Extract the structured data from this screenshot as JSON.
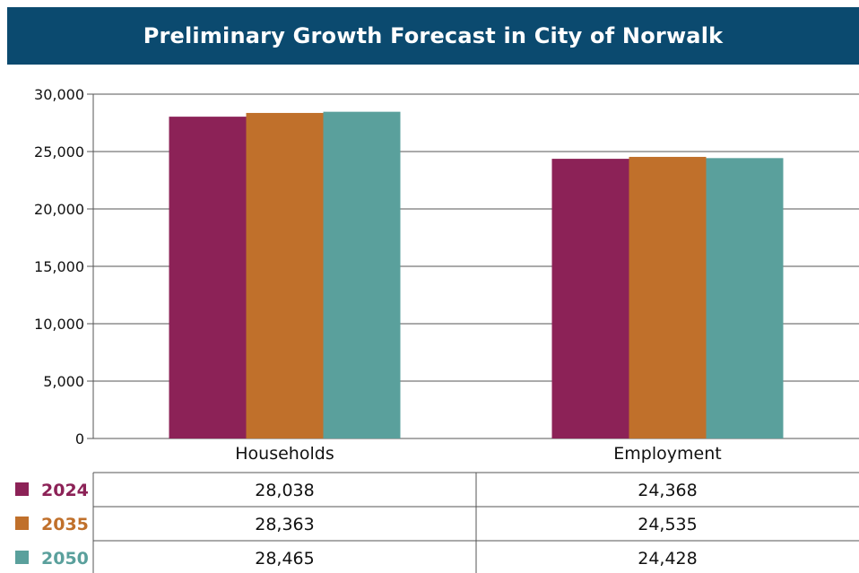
{
  "chart_data": {
    "type": "bar",
    "title": "Preliminary Growth Forecast in City of Norwalk",
    "categories": [
      "Households",
      "Employment"
    ],
    "series": [
      {
        "name": "2024",
        "values": [
          28038,
          24368
        ],
        "color": "#8c2257"
      },
      {
        "name": "2035",
        "values": [
          28363,
          24535
        ],
        "color": "#c0702b"
      },
      {
        "name": "2050",
        "values": [
          28465,
          24428
        ],
        "color": "#5aa09c"
      }
    ],
    "value_labels": [
      [
        "28,038",
        "24,368"
      ],
      [
        "28,363",
        "24,535"
      ],
      [
        "28,465",
        "24,428"
      ]
    ],
    "ylim": [
      0,
      30000
    ],
    "yticks": [
      0,
      5000,
      10000,
      15000,
      20000,
      25000,
      30000
    ],
    "ytick_labels": [
      "0",
      "5,000",
      "10,000",
      "15,000",
      "20,000",
      "25,000",
      "30,000"
    ],
    "grid": true,
    "legend": "data-table-below"
  },
  "colors": {
    "title_bar": "#0b4a6f",
    "grid": "#555555"
  }
}
